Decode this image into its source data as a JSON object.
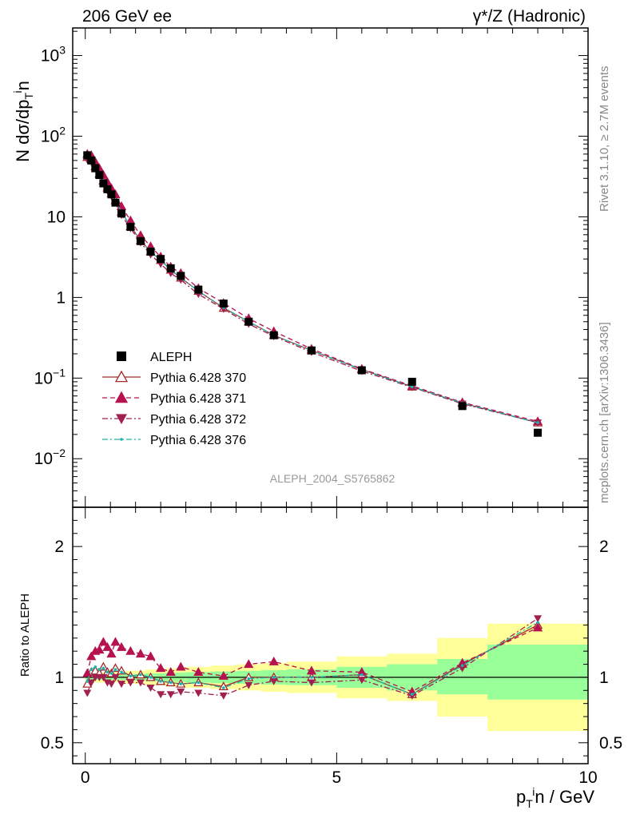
{
  "header": {
    "left_title": "206 GeV ee",
    "right_title": "γ*/Z (Hadronic)"
  },
  "side_text": {
    "rivet": "Rivet 3.1.10, ≥ 2.7M events",
    "source": "mcplots.cern.ch [arXiv:1306.3436]"
  },
  "watermark": "ALEPH_2004_S5765862",
  "colors": {
    "data": "#000000",
    "p370": "#a52a2a",
    "p371": "#b5124f",
    "p372": "#a0204f",
    "p376": "#20b2aa",
    "band_inner": "#99ff99",
    "band_outer": "#ffff99"
  },
  "chart_data": [
    {
      "type": "scatter",
      "panel": "main",
      "ylabel": {
        "main": "N dσ/dp",
        "sub": "T",
        "sup": "i",
        "tail": "n"
      },
      "yscale": "log",
      "xlim": [
        -0.25,
        10.0
      ],
      "ylim": [
        0.0025,
        2200
      ],
      "yticks": [
        {
          "value": 0.01,
          "base": "10",
          "exp": "−2"
        },
        {
          "value": 0.1,
          "base": "10",
          "exp": "−1"
        },
        {
          "value": 1,
          "base": "1",
          "exp": ""
        },
        {
          "value": 10,
          "base": "10",
          "exp": ""
        },
        {
          "value": 100,
          "base": "10",
          "exp": "2"
        },
        {
          "value": 1000,
          "base": "10",
          "exp": "3"
        }
      ],
      "legend": [
        {
          "name": "ALEPH",
          "key": "data",
          "marker": "square",
          "line": "none"
        },
        {
          "name": "Pythia 6.428 370",
          "key": "p370",
          "marker": "triangle-open",
          "line": "solid"
        },
        {
          "name": "Pythia 6.428 371",
          "key": "p371",
          "marker": "triangle",
          "line": "dashed"
        },
        {
          "name": "Pythia 6.428 372",
          "key": "p372",
          "marker": "triangle-down",
          "line": "dashdot"
        },
        {
          "name": "Pythia 6.428 376",
          "key": "p376",
          "marker": "dot",
          "line": "dashdot"
        }
      ],
      "x": [
        0.04,
        0.12,
        0.2,
        0.28,
        0.36,
        0.44,
        0.52,
        0.6,
        0.72,
        0.9,
        1.1,
        1.3,
        1.5,
        1.7,
        1.9,
        2.25,
        2.75,
        3.25,
        3.75,
        4.5,
        5.5,
        6.5,
        7.5,
        9.0
      ],
      "data": [
        58,
        50,
        40,
        33,
        26,
        22,
        19,
        15,
        11,
        7.5,
        5.0,
        3.7,
        3.0,
        2.3,
        1.85,
        1.25,
        0.84,
        0.5,
        0.34,
        0.22,
        0.125,
        0.09,
        0.045,
        0.021
      ],
      "series": [
        {
          "name": "Pythia 6.428 370",
          "key": "p370",
          "values": [
            55,
            52,
            42,
            34,
            28,
            23,
            19.5,
            16,
            11.5,
            7.6,
            5.1,
            3.7,
            2.9,
            2.2,
            1.75,
            1.2,
            0.74,
            0.5,
            0.34,
            0.22,
            0.128,
            0.078,
            0.049,
            0.028
          ]
        },
        {
          "name": "Pythia 6.428 371",
          "key": "p371",
          "values": [
            60,
            58,
            48,
            40,
            33,
            27,
            22.5,
            19,
            13.5,
            9,
            5.9,
            4.3,
            3.2,
            2.4,
            2.0,
            1.3,
            0.85,
            0.55,
            0.38,
            0.23,
            0.13,
            0.08,
            0.05,
            0.029
          ]
        },
        {
          "name": "Pythia 6.428 372",
          "key": "p372",
          "values": [
            51,
            48,
            40,
            33,
            26,
            21,
            18,
            15,
            10.5,
            7.2,
            4.8,
            3.4,
            2.6,
            2.0,
            1.65,
            1.1,
            0.72,
            0.47,
            0.33,
            0.21,
            0.122,
            0.077,
            0.048,
            0.028
          ]
        },
        {
          "name": "Pythia 6.428 376",
          "key": "p376",
          "values": [
            56,
            53,
            43,
            35,
            28,
            23,
            19.5,
            16,
            11.5,
            7.6,
            5.1,
            3.7,
            2.9,
            2.2,
            1.75,
            1.2,
            0.75,
            0.5,
            0.34,
            0.22,
            0.127,
            0.078,
            0.049,
            0.028
          ]
        }
      ]
    },
    {
      "type": "line",
      "panel": "ratio",
      "ylabel": "Ratio to ALEPH",
      "xlabel": {
        "main": "p",
        "sub": "T",
        "sup": "i",
        "tail": "n / GeV"
      },
      "xlim": [
        -0.25,
        10.0
      ],
      "ylim": [
        0.34,
        2.3
      ],
      "xticks": [
        0,
        5,
        10
      ],
      "yticks": [
        0.5,
        1,
        2
      ],
      "bands": [
        {
          "xlo": 0.0,
          "xhi": 0.8,
          "lo_outer": 0.96,
          "hi_outer": 1.04,
          "lo_inner": 0.98,
          "hi_inner": 1.02
        },
        {
          "xlo": 0.8,
          "xhi": 1.2,
          "lo_outer": 0.95,
          "hi_outer": 1.05,
          "lo_inner": 0.975,
          "hi_inner": 1.025
        },
        {
          "xlo": 1.2,
          "xhi": 1.6,
          "lo_outer": 0.94,
          "hi_outer": 1.06,
          "lo_inner": 0.97,
          "hi_inner": 1.03
        },
        {
          "xlo": 1.6,
          "xhi": 2.0,
          "lo_outer": 0.93,
          "hi_outer": 1.07,
          "lo_inner": 0.965,
          "hi_inner": 1.035
        },
        {
          "xlo": 2.0,
          "xhi": 2.5,
          "lo_outer": 0.92,
          "hi_outer": 1.08,
          "lo_inner": 0.96,
          "hi_inner": 1.04
        },
        {
          "xlo": 2.5,
          "xhi": 3.0,
          "lo_outer": 0.91,
          "hi_outer": 1.09,
          "lo_inner": 0.955,
          "hi_inner": 1.045
        },
        {
          "xlo": 3.0,
          "xhi": 3.5,
          "lo_outer": 0.9,
          "hi_outer": 1.1,
          "lo_inner": 0.95,
          "hi_inner": 1.05
        },
        {
          "xlo": 3.5,
          "xhi": 4.0,
          "lo_outer": 0.89,
          "hi_outer": 1.11,
          "lo_inner": 0.945,
          "hi_inner": 1.055
        },
        {
          "xlo": 4.0,
          "xhi": 5.0,
          "lo_outer": 0.88,
          "hi_outer": 1.12,
          "lo_inner": 0.94,
          "hi_inner": 1.06
        },
        {
          "xlo": 5.0,
          "xhi": 6.0,
          "lo_outer": 0.84,
          "hi_outer": 1.16,
          "lo_inner": 0.92,
          "hi_inner": 1.08
        },
        {
          "xlo": 6.0,
          "xhi": 7.0,
          "lo_outer": 0.82,
          "hi_outer": 1.18,
          "lo_inner": 0.9,
          "hi_inner": 1.1
        },
        {
          "xlo": 7.0,
          "xhi": 8.0,
          "lo_outer": 0.7,
          "hi_outer": 1.3,
          "lo_inner": 0.87,
          "hi_inner": 1.14
        },
        {
          "xlo": 8.0,
          "xhi": 10.0,
          "lo_outer": 0.59,
          "hi_outer": 1.41,
          "lo_inner": 0.83,
          "hi_inner": 1.25
        }
      ],
      "x": [
        0.04,
        0.12,
        0.2,
        0.28,
        0.36,
        0.44,
        0.52,
        0.6,
        0.72,
        0.9,
        1.1,
        1.3,
        1.5,
        1.7,
        1.9,
        2.25,
        2.75,
        3.25,
        3.75,
        4.5,
        5.5,
        6.5,
        7.5,
        9.0
      ],
      "series": [
        {
          "name": "Pythia 6.428 370",
          "key": "p370",
          "values": [
            0.95,
            1.04,
            1.05,
            1.03,
            1.08,
            1.04,
            1.03,
            1.07,
            1.05,
            1.01,
            1.02,
            1.0,
            0.97,
            0.96,
            0.95,
            0.96,
            0.93,
            1.0,
            1.0,
            1.0,
            1.02,
            0.87,
            1.1,
            1.4
          ]
        },
        {
          "name": "Pythia 6.428 371",
          "key": "p371",
          "values": [
            1.03,
            1.16,
            1.2,
            1.21,
            1.27,
            1.23,
            1.18,
            1.27,
            1.23,
            1.2,
            1.18,
            1.16,
            1.07,
            1.04,
            1.08,
            1.04,
            1.01,
            1.1,
            1.12,
            1.05,
            1.04,
            0.89,
            1.11,
            1.38
          ]
        },
        {
          "name": "Pythia 6.428 372",
          "key": "p372",
          "values": [
            0.88,
            0.96,
            1.0,
            1.0,
            1.0,
            0.96,
            0.95,
            1.0,
            0.95,
            0.96,
            0.96,
            0.92,
            0.87,
            0.87,
            0.89,
            0.88,
            0.86,
            0.94,
            0.97,
            0.96,
            0.98,
            0.86,
            1.07,
            1.45
          ]
        },
        {
          "name": "Pythia 6.428 376",
          "key": "p376",
          "values": [
            0.97,
            1.06,
            1.08,
            1.06,
            1.07,
            1.04,
            1.03,
            1.06,
            1.04,
            1.01,
            1.02,
            1.0,
            0.97,
            0.96,
            0.95,
            0.96,
            0.92,
            0.99,
            1.0,
            1.0,
            1.02,
            0.87,
            1.09,
            1.42
          ]
        }
      ]
    }
  ]
}
